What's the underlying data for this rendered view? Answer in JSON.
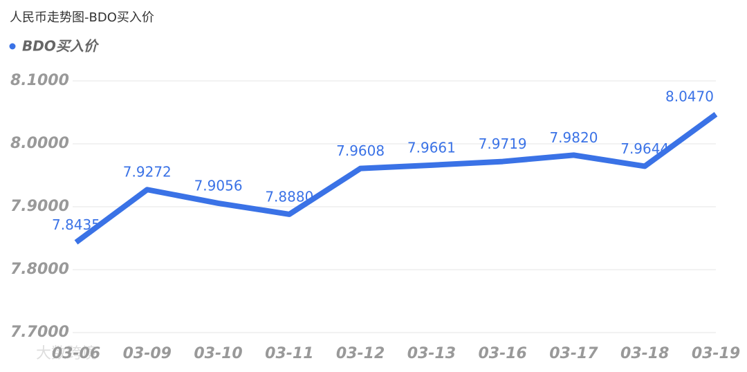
{
  "chart_data": {
    "type": "line",
    "title": "人民币走势图-BDO买入价",
    "categories": [
      "03-06",
      "03-09",
      "03-10",
      "03-11",
      "03-12",
      "03-13",
      "03-16",
      "03-17",
      "03-18",
      "03-19"
    ],
    "series": [
      {
        "name": "BDO买入价",
        "color": "#3a72e6",
        "values": [
          7.8435,
          7.9272,
          7.9056,
          7.888,
          7.9608,
          7.9661,
          7.9719,
          7.982,
          7.9644,
          8.047
        ],
        "value_labels": [
          "7.8435",
          "7.9272",
          "7.9056",
          "7.8880",
          "7.9608",
          "7.9661",
          "7.9719",
          "7.9820",
          "7.9644",
          "8.0470"
        ]
      }
    ],
    "ylim": [
      7.7,
      8.1
    ],
    "yticks": [
      {
        "value": 7.7,
        "label": "7.7000"
      },
      {
        "value": 7.8,
        "label": "7.8000"
      },
      {
        "value": 7.9,
        "label": "7.9000"
      },
      {
        "value": 8.0,
        "label": "8.0000"
      },
      {
        "value": 8.1,
        "label": "8.1000"
      }
    ],
    "grid": true,
    "watermark": "大数跨境"
  }
}
